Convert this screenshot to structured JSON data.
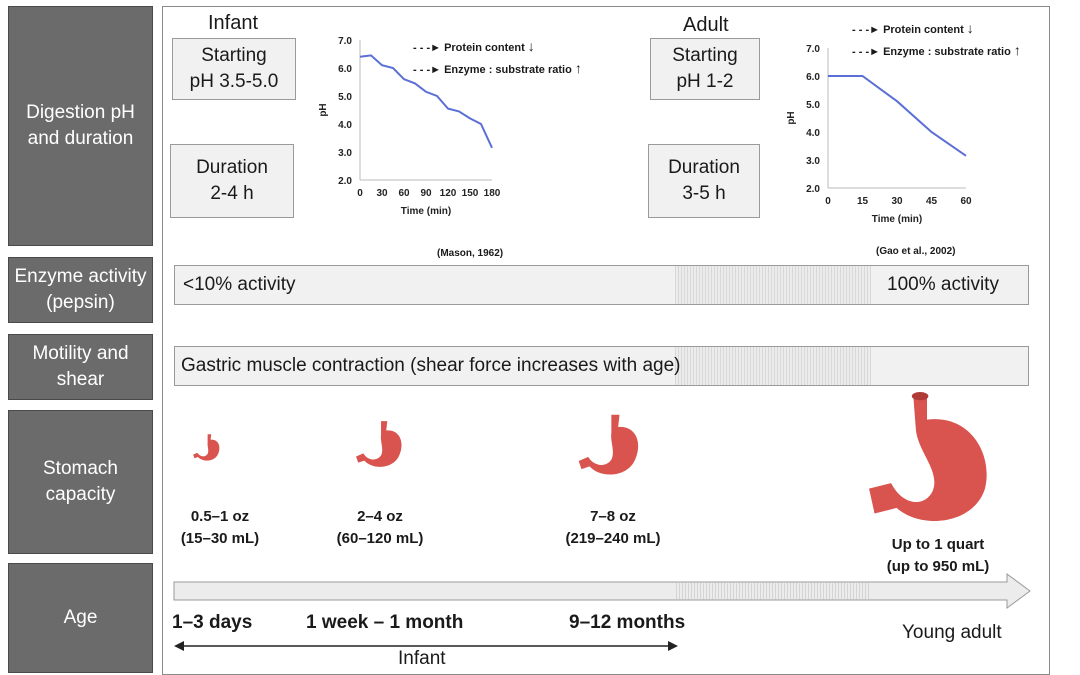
{
  "row_labels": {
    "digestion": "Digestion pH\nand duration",
    "enzyme": "Enzyme activity\n(pepsin)",
    "motility": "Motility and\nshear",
    "capacity": "Stomach\ncapacity",
    "age": "Age"
  },
  "infant": {
    "heading": "Infant",
    "starting_ph": "Starting\npH 3.5-5.0",
    "duration": "Duration\n2-4 h"
  },
  "adult": {
    "heading": "Adult",
    "starting_ph": "Starting\npH 1-2",
    "duration": "Duration\n3-5 h"
  },
  "legend": {
    "protein": "Protein content",
    "ratio": "Enzyme : substrate ratio"
  },
  "chart_data": [
    {
      "type": "line",
      "title": "",
      "xlabel": "Time (min)",
      "ylabel": "pH",
      "x": [
        0,
        15,
        30,
        45,
        60,
        75,
        90,
        105,
        120,
        135,
        150,
        165,
        180
      ],
      "y": [
        6.4,
        6.45,
        6.1,
        6.0,
        5.6,
        5.45,
        5.15,
        5.0,
        4.55,
        4.45,
        4.2,
        4.0,
        3.15
      ],
      "xticks": [
        "0",
        "30",
        "60",
        "90",
        "120",
        "150",
        "180"
      ],
      "yticks": [
        "2.0",
        "3.0",
        "4.0",
        "5.0",
        "6.0",
        "7.0"
      ],
      "xlim": [
        0,
        180
      ],
      "ylim": [
        2.0,
        7.0
      ],
      "citation": "(Mason, 1962)",
      "color": "#5b6fd6"
    },
    {
      "type": "line",
      "title": "",
      "xlabel": "Time (min)",
      "ylabel": "pH",
      "x": [
        0,
        15,
        30,
        45,
        60
      ],
      "y": [
        6.0,
        6.0,
        5.1,
        4.0,
        3.15
      ],
      "xticks": [
        "0",
        "15",
        "30",
        "45",
        "60"
      ],
      "yticks": [
        "2.0",
        "3.0",
        "4.0",
        "5.0",
        "6.0",
        "7.0"
      ],
      "xlim": [
        0,
        60
      ],
      "ylim": [
        2.0,
        7.0
      ],
      "citation": "(Gao et al., 2002)",
      "color": "#5b6fd6"
    }
  ],
  "enzyme_bar": {
    "left": "<10% activity",
    "right": "100% activity"
  },
  "motility_bar": {
    "text": "Gastric muscle contraction (shear force increases with age)"
  },
  "capacity": [
    {
      "label": "0.5–1 oz\n(15–30 mL)"
    },
    {
      "label": "2–4 oz\n(60–120 mL)"
    },
    {
      "label": "7–8 oz\n(219–240 mL)"
    },
    {
      "label": "Up to 1 quart\n(up to 950 mL)"
    }
  ],
  "ages": {
    "a1": "1–3 days",
    "a2": "1 week – 1 month",
    "a3": "9–12 months",
    "a4": "Young adult",
    "infant_span": "Infant"
  },
  "colors": {
    "label_bg": "#6b6b6b",
    "box_bg": "#f1f1f1",
    "line": "#5b6fd6",
    "stomach": "#d9534f"
  }
}
